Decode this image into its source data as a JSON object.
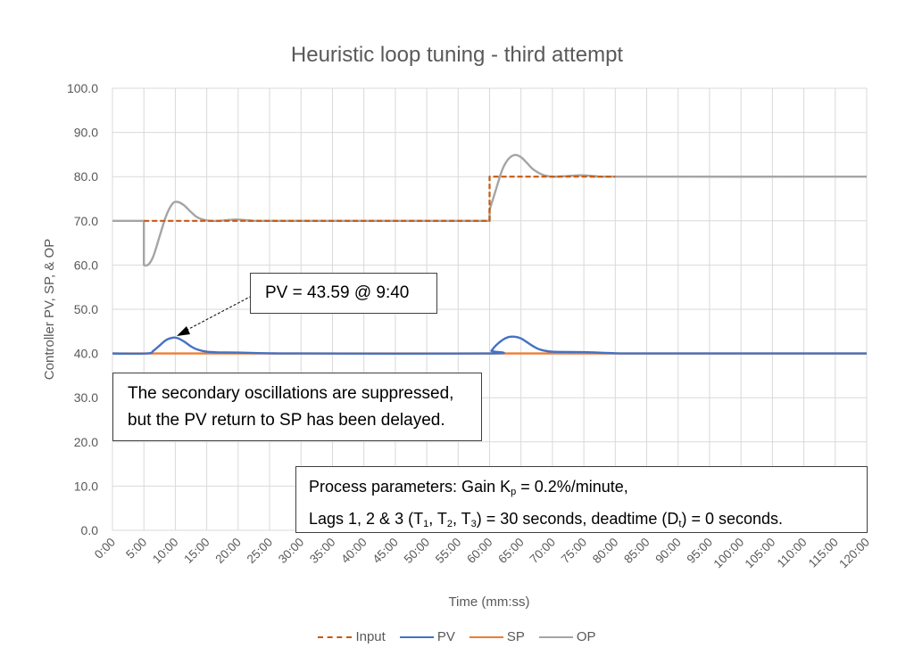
{
  "chart_data": {
    "type": "line",
    "title": "Heuristic loop tuning - third attempt",
    "xlabel": "Time (mm:ss)",
    "ylabel": "Controller PV, SP, & OP",
    "ylim": [
      0,
      100
    ],
    "xlim_minutes": [
      0,
      120
    ],
    "grid": true,
    "legend_position": "bottom",
    "y_ticks": [
      "0.0",
      "10.0",
      "20.0",
      "30.0",
      "40.0",
      "50.0",
      "60.0",
      "70.0",
      "80.0",
      "90.0",
      "100.0"
    ],
    "x_ticks": [
      "0:00",
      "5:00",
      "10:00",
      "15:00",
      "20:00",
      "25:00",
      "30:00",
      "35:00",
      "40:00",
      "45:00",
      "50:00",
      "55:00",
      "60:00",
      "65:00",
      "70:00",
      "75:00",
      "80:00",
      "85:00",
      "90:00",
      "95:00",
      "100:00",
      "105:00",
      "110:00",
      "115:00",
      "120:00"
    ],
    "series": [
      {
        "name": "Input",
        "color": "#C55A11",
        "style": "dashed",
        "points": [
          [
            5,
            70
          ],
          [
            20,
            70
          ],
          [
            60,
            70
          ],
          [
            60,
            80
          ],
          [
            80,
            80
          ]
        ]
      },
      {
        "name": "PV",
        "color": "#4472C4",
        "style": "solid",
        "points": [
          [
            0,
            40
          ],
          [
            5.5,
            40
          ],
          [
            6.5,
            40.6
          ],
          [
            7.5,
            41.8
          ],
          [
            8.5,
            43.0
          ],
          [
            9.67,
            43.59
          ],
          [
            10.5,
            43.4
          ],
          [
            11.5,
            42.6
          ],
          [
            12.5,
            41.6
          ],
          [
            13.5,
            40.9
          ],
          [
            15,
            40.4
          ],
          [
            17,
            40.25
          ],
          [
            20,
            40.2
          ],
          [
            25,
            40.05
          ],
          [
            30,
            40
          ],
          [
            60,
            40
          ],
          [
            60.3,
            40.6
          ],
          [
            61,
            41.8
          ],
          [
            62,
            43.0
          ],
          [
            63,
            43.7
          ],
          [
            64,
            43.8
          ],
          [
            65,
            43.4
          ],
          [
            66,
            42.5
          ],
          [
            67,
            41.6
          ],
          [
            68,
            40.9
          ],
          [
            70,
            40.4
          ],
          [
            75,
            40.3
          ],
          [
            80,
            40.05
          ],
          [
            85,
            40
          ],
          [
            120,
            40
          ]
        ]
      },
      {
        "name": "SP",
        "color": "#ED7D31",
        "style": "solid",
        "points": [
          [
            0,
            40
          ],
          [
            120,
            40
          ]
        ]
      },
      {
        "name": "OP",
        "color": "#A5A5A5",
        "style": "solid",
        "points": [
          [
            0,
            70
          ],
          [
            5,
            70
          ],
          [
            5,
            60
          ],
          [
            5.7,
            60.1
          ],
          [
            6.5,
            62
          ],
          [
            7.5,
            66.5
          ],
          [
            8.5,
            71
          ],
          [
            9.5,
            73.8
          ],
          [
            10.3,
            74.3
          ],
          [
            11.3,
            73.6
          ],
          [
            12.5,
            72
          ],
          [
            13.5,
            70.8
          ],
          [
            15,
            70.1
          ],
          [
            17,
            70
          ],
          [
            19.5,
            70.3
          ],
          [
            22,
            70.1
          ],
          [
            25,
            70
          ],
          [
            60,
            70
          ],
          [
            60,
            72.5
          ],
          [
            61,
            77
          ],
          [
            62,
            81.5
          ],
          [
            63,
            84
          ],
          [
            64,
            84.9
          ],
          [
            65,
            84.4
          ],
          [
            66,
            83
          ],
          [
            67,
            81.6
          ],
          [
            68.5,
            80.4
          ],
          [
            70,
            80
          ],
          [
            72,
            80.1
          ],
          [
            74.5,
            80.3
          ],
          [
            77,
            80.1
          ],
          [
            80,
            80
          ],
          [
            120,
            80
          ]
        ]
      }
    ],
    "annotations": [
      {
        "text": "PV = 43.59 @ 9:40",
        "points_to": [
          9.67,
          43.59
        ]
      },
      {
        "text": "The secondary oscillations are suppressed, but the PV return to SP has been delayed."
      },
      {
        "text": "Process parameters: Gain Kp = 0.2%/minute, Lags 1, 2 & 3 (T1, T2, T3) = 30 seconds, deadtime (Dt) = 0 seconds."
      }
    ]
  },
  "annotations": {
    "peak_label": "PV = 43.59 @ 9:40",
    "osc_line1": "The secondary oscillations are suppressed,",
    "osc_line2": "but the PV return to SP has been delayed.",
    "params_line1_a": "Process parameters: Gain K",
    "params_line1_sub": "p",
    "params_line1_b": " = 0.2%/minute,",
    "params_line2_a": "Lags 1, 2 & 3 (T",
    "params_line2_s1": "1",
    "params_line2_b": ", T",
    "params_line2_s2": "2",
    "params_line2_c": ", T",
    "params_line2_s3": "3",
    "params_line2_d": ") = 30 seconds, deadtime (D",
    "params_line2_s4": "t",
    "params_line2_e": ") = 0 seconds."
  },
  "legend": [
    {
      "label": "Input",
      "color": "#C55A11",
      "style": "dashed"
    },
    {
      "label": "PV",
      "color": "#4472C4",
      "style": "solid"
    },
    {
      "label": "SP",
      "color": "#ED7D31",
      "style": "solid"
    },
    {
      "label": "OP",
      "color": "#A5A5A5",
      "style": "solid"
    }
  ]
}
